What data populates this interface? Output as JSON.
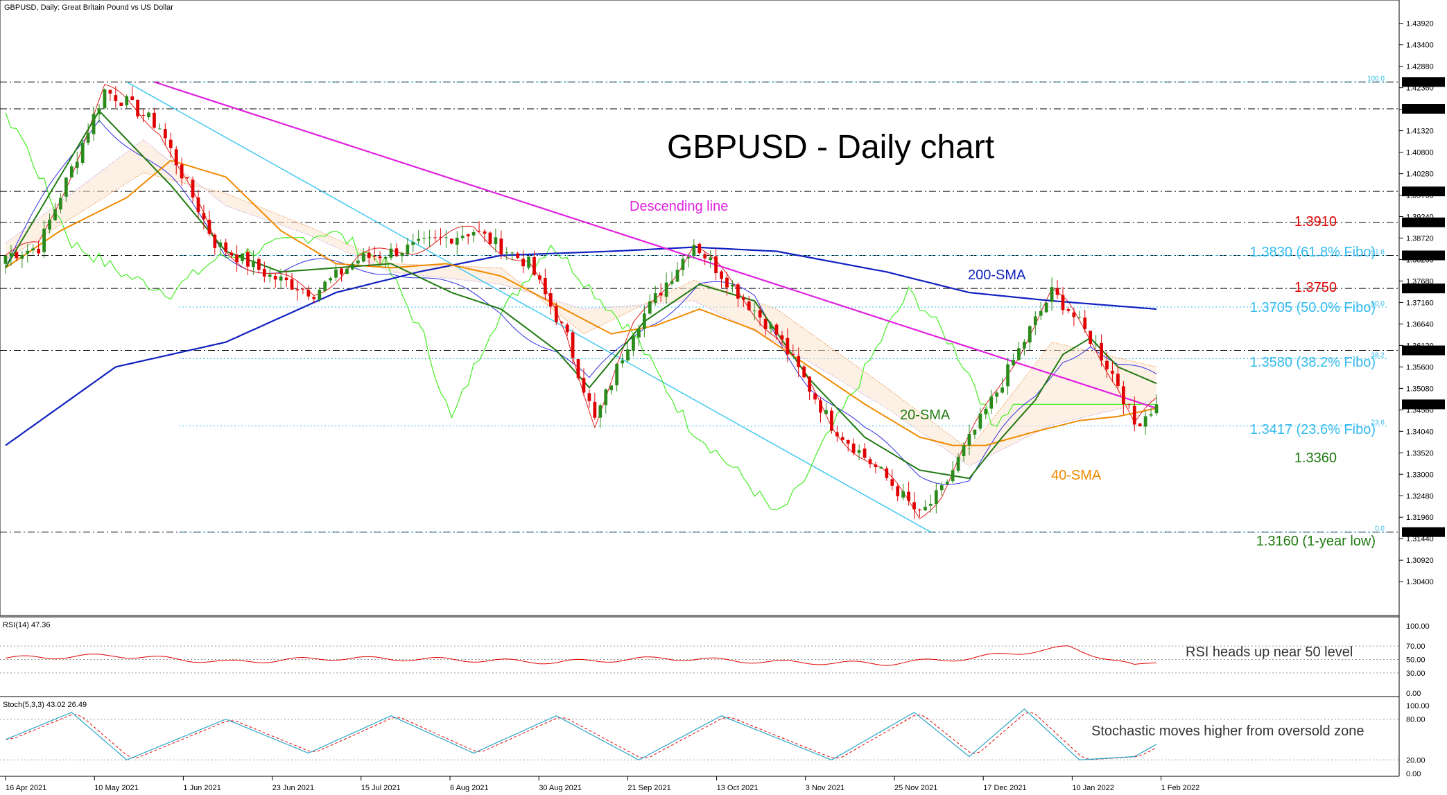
{
  "window": {
    "symbol_title": "GBPUSD, Daily:  Great Britain Pound vs US Dollar",
    "chart_title": "GBPUSD - Daily chart"
  },
  "colors": {
    "bull": "#2a8a1a",
    "bear": "#e00000",
    "sma20": "#1f7a10",
    "sma40": "#f08a00",
    "sma200": "#1020c0",
    "descending": "#e020e0",
    "fibo": "#33bbee",
    "channel": "#40c8f0",
    "kijun": "#3030e0",
    "tenkan": "#e02020",
    "chikou": "#44ee22",
    "cloud": "#f0a060",
    "rsi": "#e00000",
    "stoch_main": "#2aa6c8",
    "stoch_signal": "#e00000",
    "resistance_red": "#e00000",
    "support_green": "#1f7a10"
  },
  "annotations": {
    "descending_line": "Descending line",
    "sma200": "200-SMA",
    "sma20": "20-SMA",
    "sma40": "40-SMA",
    "res_1_3910": "1.3910",
    "fib_618": "1.3830 (61.8% Fibo)",
    "res_1_3750": "1.3750",
    "fib_500": "1.3705 (50.0% Fibo)",
    "fib_382": "1.3580 (38.2% Fibo)",
    "fib_236": "1.3417 (23.6% Fibo)",
    "sup_1_3360": "1.3360",
    "low_1_3160": "1.3160 (1-year low)",
    "rsi_note": "RSI heads up near 50 level",
    "stoch_note": "Stochastic moves higher from oversold zone"
  },
  "fib_tags": {
    "f100": "100.0",
    "f618": "61.8",
    "f500": "50.0",
    "f382": "38.2",
    "f236": "23.6",
    "f0": "0.0"
  },
  "rsi_panel": {
    "label": "RSI(14) 47.36"
  },
  "stoch_panel": {
    "label": "Stoch(5,3,3) 43.02 26.49"
  },
  "chart_data": [
    {
      "type": "candlestick",
      "title": "GBPUSD - Daily chart",
      "x_labels": [
        "16 Apr 2021",
        "10 May 2021",
        "1 Jun 2021",
        "23 Jun 2021",
        "15 Jul 2021",
        "6 Aug 2021",
        "30 Aug 2021",
        "21 Sep 2021",
        "13 Oct 2021",
        "3 Nov 2021",
        "25 Nov 2021",
        "17 Dec 2021",
        "10 Jan 2022",
        "1 Feb 2022"
      ],
      "y_ticks": [
        "1.43920",
        "1.43400",
        "1.42880",
        "1.42360",
        "1.41840",
        "1.41320",
        "1.40800",
        "1.40280",
        "1.39760",
        "1.39240",
        "1.38720",
        "1.38200",
        "1.37680",
        "1.37160",
        "1.36640",
        "1.36120",
        "1.35600",
        "1.35080",
        "1.34560",
        "1.34040",
        "1.33520",
        "1.33000",
        "1.32480",
        "1.31960",
        "1.31440",
        "1.30920",
        "1.30400"
      ],
      "y_range": [
        1.2995,
        1.4425
      ],
      "highlighted_levels": [
        "1.42500",
        "1.41850",
        "1.39850",
        "1.39100",
        "1.38300",
        "1.37500",
        "1.36000",
        "1.31600"
      ],
      "current_price": "1.34693",
      "series_anchors": {
        "close": [
          [
            0,
            1.383
          ],
          [
            6,
            1.385
          ],
          [
            18,
            1.423
          ],
          [
            22,
            1.42
          ],
          [
            28,
            1.414
          ],
          [
            38,
            1.386
          ],
          [
            48,
            1.378
          ],
          [
            56,
            1.374
          ],
          [
            64,
            1.382
          ],
          [
            74,
            1.385
          ],
          [
            85,
            1.389
          ],
          [
            95,
            1.381
          ],
          [
            102,
            1.363
          ],
          [
            107,
            1.343
          ],
          [
            114,
            1.365
          ],
          [
            125,
            1.386
          ],
          [
            133,
            1.374
          ],
          [
            140,
            1.364
          ],
          [
            150,
            1.342
          ],
          [
            160,
            1.329
          ],
          [
            166,
            1.32
          ],
          [
            170,
            1.326
          ],
          [
            174,
            1.336
          ],
          [
            180,
            1.35
          ],
          [
            186,
            1.365
          ],
          [
            190,
            1.374
          ],
          [
            193,
            1.37
          ],
          [
            198,
            1.361
          ],
          [
            202,
            1.352
          ],
          [
            205,
            1.342
          ],
          [
            209,
            1.3469
          ]
        ],
        "sma20": [
          [
            0,
            1.38
          ],
          [
            17,
            1.418
          ],
          [
            30,
            1.4
          ],
          [
            40,
            1.384
          ],
          [
            50,
            1.379
          ],
          [
            60,
            1.38
          ],
          [
            70,
            1.381
          ],
          [
            81,
            1.374
          ],
          [
            90,
            1.37
          ],
          [
            100,
            1.36
          ],
          [
            106,
            1.351
          ],
          [
            116,
            1.367
          ],
          [
            126,
            1.376
          ],
          [
            136,
            1.372
          ],
          [
            146,
            1.353
          ],
          [
            156,
            1.339
          ],
          [
            166,
            1.331
          ],
          [
            175,
            1.329
          ],
          [
            181,
            1.339
          ],
          [
            187,
            1.348
          ],
          [
            192,
            1.359
          ],
          [
            197,
            1.363
          ],
          [
            202,
            1.356
          ],
          [
            209,
            1.352
          ]
        ],
        "sma40": [
          [
            0,
            1.38
          ],
          [
            10,
            1.389
          ],
          [
            22,
            1.397
          ],
          [
            30,
            1.406
          ],
          [
            40,
            1.402
          ],
          [
            50,
            1.389
          ],
          [
            60,
            1.381
          ],
          [
            70,
            1.38
          ],
          [
            80,
            1.381
          ],
          [
            90,
            1.378
          ],
          [
            100,
            1.371
          ],
          [
            110,
            1.364
          ],
          [
            118,
            1.366
          ],
          [
            126,
            1.37
          ],
          [
            136,
            1.365
          ],
          [
            146,
            1.356
          ],
          [
            156,
            1.347
          ],
          [
            166,
            1.339
          ],
          [
            172,
            1.337
          ],
          [
            178,
            1.337
          ],
          [
            186,
            1.34
          ],
          [
            195,
            1.343
          ],
          [
            202,
            1.344
          ],
          [
            209,
            1.346
          ]
        ],
        "sma200": [
          [
            0,
            1.337
          ],
          [
            20,
            1.356
          ],
          [
            40,
            1.362
          ],
          [
            60,
            1.374
          ],
          [
            75,
            1.379
          ],
          [
            90,
            1.383
          ],
          [
            110,
            1.384
          ],
          [
            125,
            1.385
          ],
          [
            140,
            1.384
          ],
          [
            160,
            1.379
          ],
          [
            175,
            1.374
          ],
          [
            190,
            1.372
          ],
          [
            209,
            1.37
          ]
        ]
      }
    },
    {
      "type": "line",
      "name": "RSI(14)",
      "y_ticks": [
        "100.00",
        "70.00",
        "50.00",
        "30.00",
        "0.00"
      ],
      "values_anchor": [
        [
          0,
          52
        ],
        [
          20,
          56
        ],
        [
          40,
          46
        ],
        [
          60,
          52
        ],
        [
          80,
          50
        ],
        [
          100,
          46
        ],
        [
          120,
          52
        ],
        [
          140,
          46
        ],
        [
          160,
          44
        ],
        [
          175,
          52
        ],
        [
          193,
          68
        ],
        [
          205,
          40
        ],
        [
          209,
          47.36
        ]
      ]
    },
    {
      "type": "line",
      "name": "Stoch(5,3,3)",
      "y_ticks": [
        "100.00",
        "80.00",
        "20.00",
        "0.00"
      ],
      "values_anchor": [
        [
          0,
          50
        ],
        [
          12,
          90
        ],
        [
          22,
          20
        ],
        [
          40,
          80
        ],
        [
          55,
          30
        ],
        [
          70,
          85
        ],
        [
          85,
          30
        ],
        [
          100,
          85
        ],
        [
          115,
          20
        ],
        [
          130,
          85
        ],
        [
          150,
          20
        ],
        [
          165,
          90
        ],
        [
          175,
          25
        ],
        [
          185,
          95
        ],
        [
          195,
          20
        ],
        [
          205,
          25
        ],
        [
          209,
          43.02
        ]
      ]
    }
  ]
}
